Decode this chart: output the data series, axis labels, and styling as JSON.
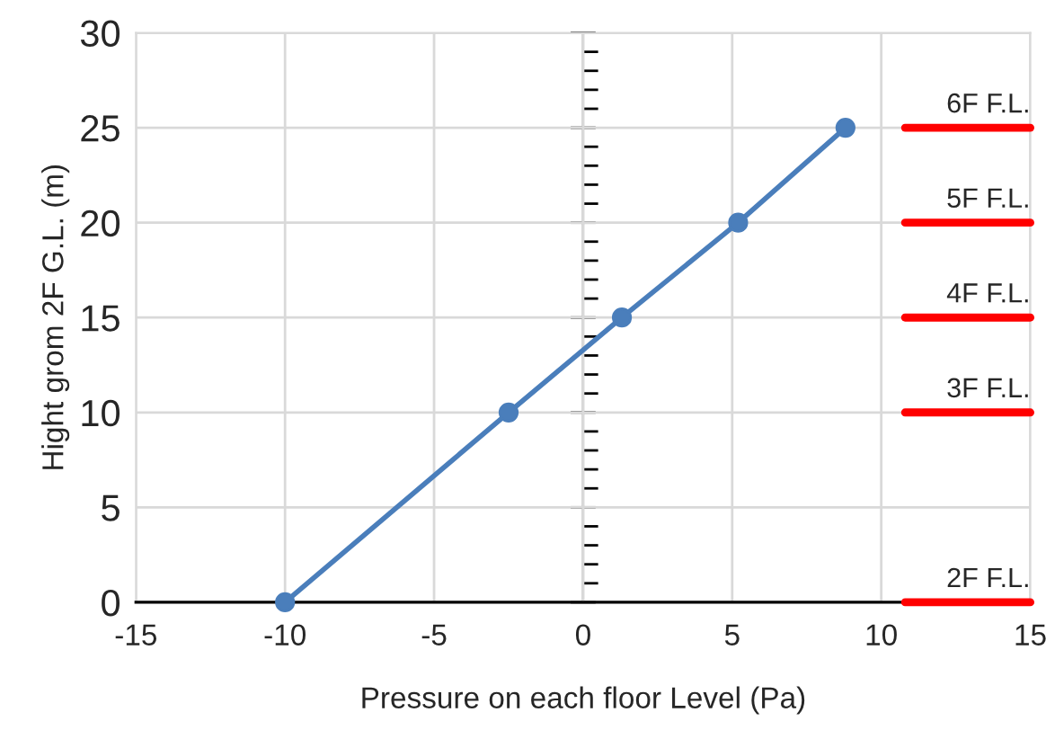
{
  "chart_data": {
    "type": "line",
    "xlabel": "Pressure on each floor Level (Pa)",
    "ylabel": "Hight grom 2F G.L. (m)",
    "xlim": [
      -15,
      15
    ],
    "xticks": [
      -15,
      -10,
      -5,
      0,
      5,
      10,
      15
    ],
    "ylim": [
      0,
      30
    ],
    "yticks": [
      0,
      5,
      10,
      15,
      20,
      25,
      30
    ],
    "grid": true,
    "marker": "circle",
    "line_style": "solid",
    "series": [
      {
        "color": "#4a7ebb",
        "x": [
          -10,
          -2.5,
          1.3,
          5.2,
          8.8
        ],
        "values": [
          0,
          10,
          15,
          20,
          25
        ]
      },
      {
        "name": "6F F.L.",
        "color": "#ff0000",
        "marker": "none",
        "x": [
          10.8,
          15
        ],
        "values": [
          25,
          25
        ]
      },
      {
        "name": "5F F.L.",
        "color": "#ff0000",
        "marker": "none",
        "x": [
          10.8,
          15
        ],
        "values": [
          20,
          20
        ]
      },
      {
        "name": "4F F.L.",
        "color": "#ff0000",
        "marker": "none",
        "x": [
          10.8,
          15
        ],
        "values": [
          15,
          15
        ]
      },
      {
        "name": "3F F.L.",
        "color": "#ff0000",
        "marker": "none",
        "x": [
          10.8,
          15
        ],
        "values": [
          10,
          10
        ]
      },
      {
        "name": "2F F.L.",
        "color": "#ff0000",
        "marker": "none",
        "x": [
          10.8,
          15
        ],
        "values": [
          0,
          0
        ]
      }
    ]
  }
}
